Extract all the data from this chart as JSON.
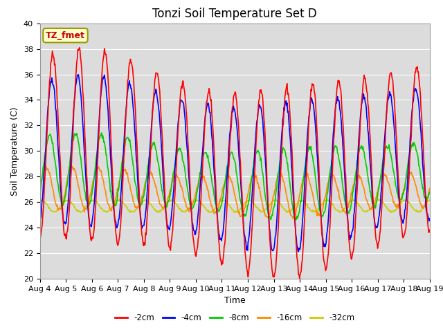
{
  "title": "Tonzi Soil Temperature Set D",
  "xlabel": "Time",
  "ylabel": "Soil Temperature (C)",
  "ylim": [
    20,
    40
  ],
  "xtick_labels": [
    "Aug 4",
    "Aug 5",
    "Aug 6",
    "Aug 7",
    "Aug 8",
    "Aug 9",
    "Aug 10",
    "Aug 11",
    "Aug 12",
    "Aug 13",
    "Aug 14",
    "Aug 15",
    "Aug 16",
    "Aug 17",
    "Aug 18",
    "Aug 19"
  ],
  "ytick_labels": [
    20,
    22,
    24,
    26,
    28,
    30,
    32,
    34,
    36,
    38,
    40
  ],
  "series": {
    "-2cm": {
      "color": "#FF0000",
      "linewidth": 1.2
    },
    "-4cm": {
      "color": "#0000FF",
      "linewidth": 1.2
    },
    "-8cm": {
      "color": "#00CC00",
      "linewidth": 1.2
    },
    "-16cm": {
      "color": "#FF8800",
      "linewidth": 1.2
    },
    "-32cm": {
      "color": "#CCCC00",
      "linewidth": 1.2
    }
  },
  "legend_label": "TZ_fmet",
  "background_color": "#DCDCDC",
  "title_fontsize": 12,
  "axis_label_fontsize": 9,
  "tick_fontsize": 8
}
